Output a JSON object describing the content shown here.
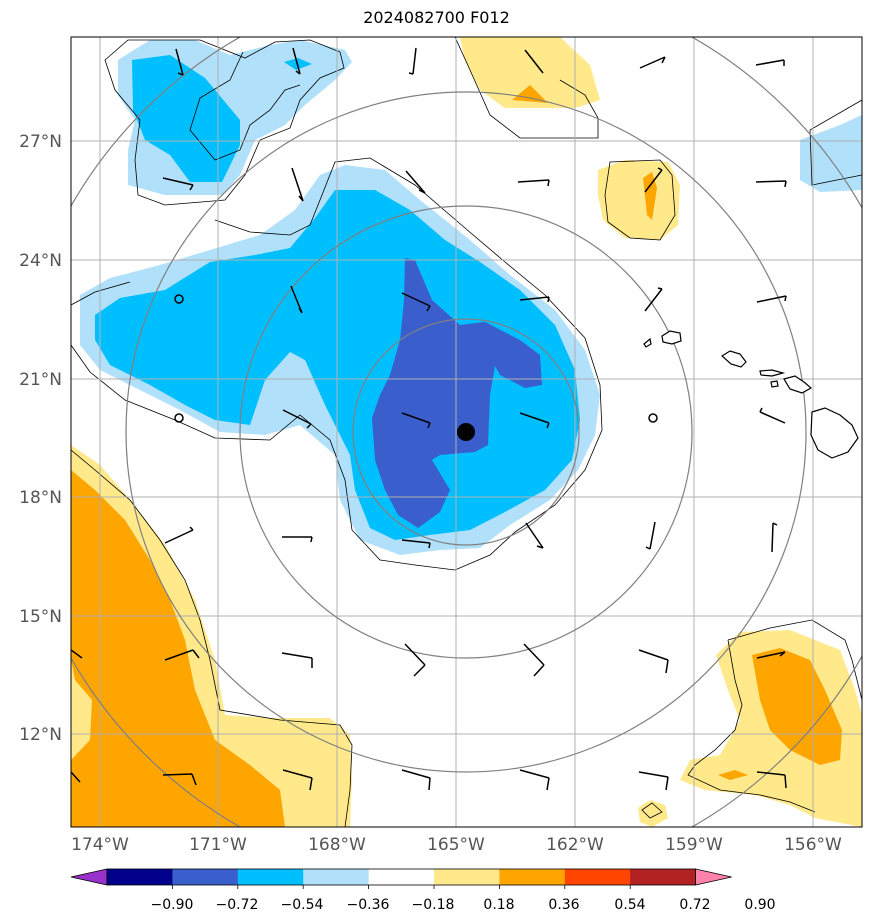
{
  "title": "2024082700 F012",
  "lat_labels": [
    "27°N",
    "24°N",
    "21°N",
    "18°N",
    "15°N",
    "12°N"
  ],
  "lon_labels": [
    "174°W",
    "171°W",
    "168°W",
    "165°W",
    "162°W",
    "159°W",
    "156°W"
  ],
  "colorbar": {
    "ticks": [
      "−0.90",
      "−0.72",
      "−0.54",
      "−0.36",
      "−0.18",
      "0.18",
      "0.36",
      "0.54",
      "0.72",
      "0.90"
    ],
    "colors": [
      "#9932cc",
      "#00008b",
      "#3a5fcd",
      "#00bfff",
      "#b0e0fa",
      "#ffffff",
      "#ffe98a",
      "#ffa500",
      "#ff4500",
      "#b22222",
      "#ff82ab"
    ]
  },
  "map": {
    "extent": {
      "lon_min": -174.8,
      "lon_max": -154.8,
      "lat_min": 10.0,
      "lat_max": 29.9
    },
    "storm_center": {
      "lon": -164.7,
      "lat": 19.7
    },
    "range_rings_deg": [
      3,
      6,
      9
    ]
  }
}
